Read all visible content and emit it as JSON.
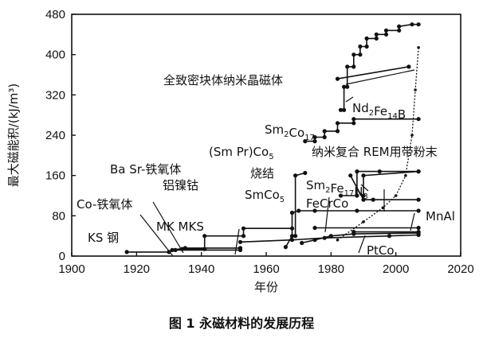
{
  "caption": "图 1  永磁材料的发展历程",
  "chart_data": {
    "type": "line",
    "xlabel": "年份",
    "ylabel": "最大磁能积/(kJ/m³)",
    "xlim": [
      1900,
      2020
    ],
    "ylim": [
      0,
      480
    ],
    "xticks": [
      "1900",
      "1920",
      "1940",
      "1960",
      "1980",
      "2000",
      "2020"
    ],
    "yticks": [
      "0",
      "80",
      "160",
      "240",
      "320",
      "400",
      "480"
    ],
    "grid": false,
    "series": [
      {
        "name": "KS钢",
        "x": [
          1917,
          1930
        ],
        "y": [
          8,
          8
        ]
      },
      {
        "name": "Co-铁氧体",
        "x": [
          1932,
          1952
        ],
        "y": [
          12,
          12
        ]
      },
      {
        "name": "MK",
        "x": [
          1931,
          1935,
          1952
        ],
        "y": [
          12,
          16,
          16
        ]
      },
      {
        "name": "铝镍钴",
        "x": [
          1934,
          1941,
          1941,
          1953,
          1953,
          1968
        ],
        "y": [
          14,
          14,
          40,
          40,
          55,
          55
        ]
      },
      {
        "name": "Ba Sr-铁氧体",
        "x": [
          1952,
          1968,
          1978,
          1998,
          2007
        ],
        "y": [
          28,
          32,
          36,
          40,
          42
        ]
      },
      {
        "name": "SmCo5",
        "x": [
          1966,
          1968,
          1968,
          1970,
          1975,
          1988,
          2007
        ],
        "y": [
          18,
          40,
          86,
          90,
          90,
          90,
          90
        ]
      },
      {
        "name": "(Sm Pr)Co5",
        "x": [
          1969,
          1969,
          1972
        ],
        "y": [
          40,
          160,
          165
        ]
      },
      {
        "name": "Sm2Co17",
        "x": [
          1972,
          1975,
          1975,
          1978,
          1978,
          1982,
          1982,
          1987,
          1987,
          2007
        ],
        "y": [
          228,
          228,
          236,
          236,
          248,
          248,
          264,
          264,
          272,
          272
        ]
      },
      {
        "name": "FeCrCo",
        "x": [
          1971,
          1975,
          1980,
          1987,
          2007
        ],
        "y": [
          26,
          32,
          40,
          44,
          46
        ]
      },
      {
        "name": "Nd2Fe14B",
        "x": [
          1983,
          1984,
          1984,
          1985,
          1985,
          1987,
          1987,
          1989,
          1989,
          1991,
          1991,
          1994,
          1994,
          1997,
          1997,
          2001,
          2001,
          2005,
          2007
        ],
        "y": [
          290,
          290,
          336,
          336,
          376,
          376,
          400,
          400,
          416,
          416,
          432,
          432,
          440,
          440,
          448,
          448,
          456,
          460,
          460
        ]
      },
      {
        "name": "纳米晶块体",
        "x": [
          1982,
          2004
        ],
        "y": [
          352,
          376
        ]
      },
      {
        "name": "纳米复合",
        "x": [
          1983,
          1988,
          1988,
          1995,
          2007
        ],
        "y": [
          120,
          120,
          168,
          168,
          168
        ]
      },
      {
        "name": "REM用带粉末",
        "x": [
          1986,
          1990,
          1993,
          2007
        ],
        "y": [
          160,
          112,
          112,
          112
        ]
      },
      {
        "name": "Sm2Fe17N3",
        "x": [
          1990,
          1990,
          2007
        ],
        "y": [
          120,
          160,
          168
        ]
      },
      {
        "name": "MnAl",
        "x": [
          1975,
          2007
        ],
        "y": [
          56,
          56
        ]
      },
      {
        "name": "PtCo",
        "x": [
          1987,
          2007
        ],
        "y": [
          48,
          48
        ]
      },
      {
        "name": "发展曲线",
        "x": [
          1982,
          1990,
          1996,
          2000,
          2003,
          2005,
          2006,
          2007
        ],
        "y": [
          32,
          68,
          96,
          120,
          160,
          240,
          330,
          414
        ]
      }
    ],
    "annotations": [
      {
        "text": "全致密块体纳米晶磁体"
      },
      {
        "text": "Nd",
        "sub": "2",
        "text2": "Fe",
        "sub2": "14",
        "text3": "B"
      },
      {
        "text": "Sm",
        "sub": "2",
        "text2": "Co",
        "sub2": "17"
      },
      {
        "text": "(Sm Pr)Co",
        "sub": "5"
      },
      {
        "text": "纳米复合 REM用带粉末"
      },
      {
        "text": "Ba Sr-铁氧体"
      },
      {
        "text": "烧结"
      },
      {
        "text": "SmCo",
        "sub": "5"
      },
      {
        "text": "Sm",
        "sub": "2",
        "text2": "Fe",
        "sub2": "17",
        "text3": "N",
        "sub3": "3"
      },
      {
        "text": "FeCrCo"
      },
      {
        "text": "铝镍钴"
      },
      {
        "text": "Co-铁氧体"
      },
      {
        "text": "MK MKS"
      },
      {
        "text": "KS 钢"
      },
      {
        "text": "MnAl"
      },
      {
        "text": "PtCo"
      }
    ]
  }
}
